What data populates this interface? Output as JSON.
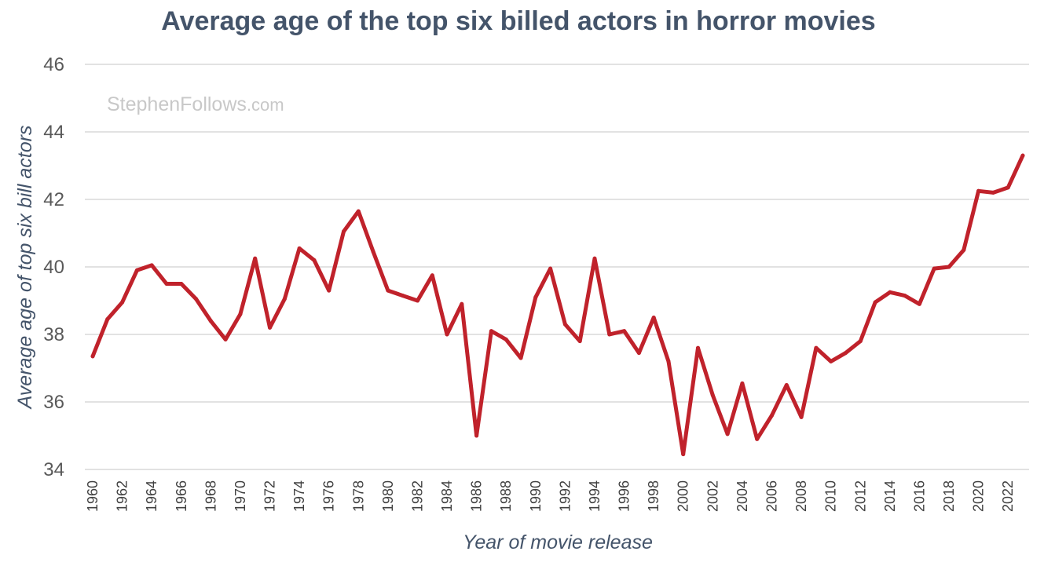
{
  "chart_data": {
    "type": "line",
    "title": "Average age of the top six billed actors in horror movies",
    "xlabel": "Year of movie release",
    "ylabel": "Average age of top six bill actors",
    "ylim": [
      34,
      46
    ],
    "yticks": [
      34,
      36,
      38,
      40,
      42,
      44,
      46
    ],
    "grid": true,
    "watermark": {
      "main": "StephenFollows",
      "suffix": ".com"
    },
    "x": [
      1960,
      1961,
      1962,
      1963,
      1964,
      1965,
      1966,
      1967,
      1968,
      1969,
      1970,
      1971,
      1972,
      1973,
      1974,
      1975,
      1976,
      1977,
      1978,
      1979,
      1980,
      1981,
      1982,
      1983,
      1984,
      1985,
      1986,
      1987,
      1988,
      1989,
      1990,
      1991,
      1992,
      1993,
      1994,
      1995,
      1996,
      1997,
      1998,
      1999,
      2000,
      2001,
      2002,
      2003,
      2004,
      2005,
      2006,
      2007,
      2008,
      2009,
      2010,
      2011,
      2012,
      2013,
      2014,
      2015,
      2016,
      2017,
      2018,
      2019,
      2020,
      2021,
      2022,
      2023
    ],
    "xtick_labels": [
      "1960",
      "1962",
      "1964",
      "1966",
      "1968",
      "1970",
      "1972",
      "1974",
      "1976",
      "1978",
      "1980",
      "1982",
      "1984",
      "1986",
      "1988",
      "1990",
      "1992",
      "1994",
      "1996",
      "1998",
      "2000",
      "2002",
      "2004",
      "2006",
      "2008",
      "2010",
      "2012",
      "2014",
      "2016",
      "2018",
      "2020",
      "2022"
    ],
    "series": [
      {
        "color": "#c0222b",
        "values": [
          37.35,
          38.45,
          38.95,
          39.9,
          40.05,
          39.5,
          39.5,
          39.05,
          38.4,
          37.85,
          38.6,
          40.25,
          38.2,
          39.05,
          40.55,
          40.2,
          39.3,
          41.05,
          41.65,
          40.45,
          39.3,
          39.15,
          39.0,
          39.75,
          38.0,
          38.9,
          35.0,
          38.1,
          37.85,
          37.3,
          39.1,
          39.95,
          38.3,
          37.8,
          40.25,
          38.0,
          38.1,
          37.45,
          38.5,
          37.2,
          34.45,
          37.6,
          36.2,
          35.05,
          36.55,
          34.9,
          35.6,
          36.5,
          35.55,
          37.6,
          37.2,
          37.45,
          37.8,
          38.95,
          39.25,
          39.15,
          38.9,
          39.95,
          40.0,
          40.5,
          42.25,
          42.2,
          42.35,
          43.3
        ]
      }
    ]
  }
}
